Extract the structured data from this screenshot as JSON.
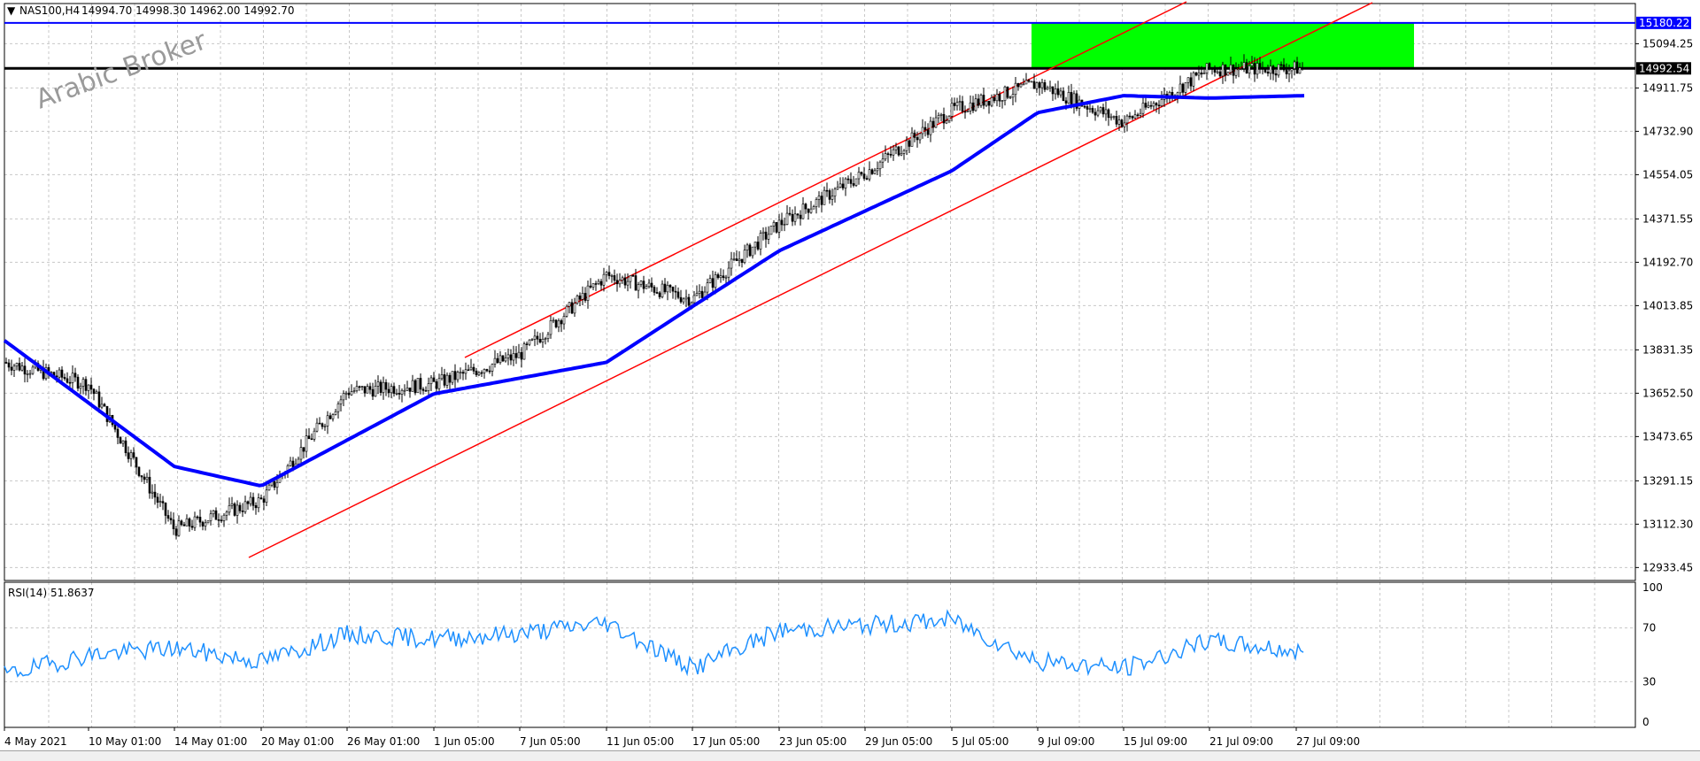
{
  "header": {
    "symbol_label": "NAS100,H4",
    "ohlc": "14994.70 14998.30 14962.00 14992.70"
  },
  "watermark": "Arabic Broker",
  "price_axis": {
    "ticks": [
      "15094.25",
      "14911.75",
      "14732.90",
      "14554.05",
      "14371.55",
      "14192.70",
      "14013.85",
      "13831.35",
      "13652.50",
      "13473.65",
      "13291.15",
      "13112.30",
      "12933.45"
    ],
    "resistance_label": "15180.22",
    "current_label": "14992.54"
  },
  "time_axis": {
    "ticks": [
      "4 May 2021",
      "10 May 01:00",
      "14 May 01:00",
      "20 May 01:00",
      "26 May 01:00",
      "1 Jun 05:00",
      "7 Jun 05:00",
      "11 Jun 05:00",
      "17 Jun 05:00",
      "23 Jun 05:00",
      "29 Jun 05:00",
      "5 Jul 05:00",
      "9 Jul 09:00",
      "15 Jul 09:00",
      "21 Jul 09:00",
      "27 Jul 09:00"
    ]
  },
  "rsi": {
    "label": "RSI(14) 51.8637",
    "ticks": [
      "100",
      "70",
      "30",
      "0"
    ]
  },
  "colors": {
    "background": "#ffffff",
    "grid": "#c8c8c8",
    "candle": "#000000",
    "moving_average": "#0000ff",
    "channel": "#ff0000",
    "zone": "#00ff00",
    "resistance": "#0000ff",
    "rsi_line": "#1e90ff"
  },
  "chart_data": {
    "type": "candlestick",
    "symbol": "NAS100",
    "timeframe": "H4",
    "price_range": [
      12880,
      15260
    ],
    "price_keypoints": [
      [
        "4 May 2021",
        13780
      ],
      [
        "10 May 01:00",
        13690
      ],
      [
        "14 May 01:00",
        13090
      ],
      [
        "20 May 01:00",
        13210
      ],
      [
        "26 May 01:00",
        13660
      ],
      [
        "1 Jun 05:00",
        13690
      ],
      [
        "7 Jun 05:00",
        13810
      ],
      [
        "11 Jun 05:00",
        14140
      ],
      [
        "17 Jun 05:00",
        14040
      ],
      [
        "23 Jun 05:00",
        14350
      ],
      [
        "29 Jun 05:00",
        14560
      ],
      [
        "5 Jul 05:00",
        14820
      ],
      [
        "9 Jul 09:00",
        14930
      ],
      [
        "15 Jul 09:00",
        14770
      ],
      [
        "21 Jul 09:00",
        14990
      ],
      [
        "27 Jul 09:00",
        14992.7
      ]
    ],
    "moving_average_keypoints": [
      [
        "4 May 2021",
        13870
      ],
      [
        "14 May 01:00",
        13350
      ],
      [
        "20 May 01:00",
        13270
      ],
      [
        "1 Jun 05:00",
        13650
      ],
      [
        "11 Jun 05:00",
        13780
      ],
      [
        "17 Jun 05:00",
        14010
      ],
      [
        "23 Jun 05:00",
        14240
      ],
      [
        "5 Jul 05:00",
        14570
      ],
      [
        "9 Jul 09:00",
        14810
      ],
      [
        "15 Jul 09:00",
        14880
      ],
      [
        "21 Jul 09:00",
        14870
      ],
      [
        "27 Jul 09:00",
        14880
      ]
    ],
    "zone": {
      "from_time": "9 Jul 09:00",
      "to_time": "27 Jul 09:00+",
      "price_top": 15180.22,
      "price_bottom": 14992.54
    },
    "horizontal_lines": [
      15180.22,
      14992.54
    ],
    "rsi_range": [
      0,
      100
    ],
    "rsi_levels": [
      70,
      30
    ],
    "rsi_last": 51.8637,
    "rsi_keypoints": [
      [
        "4 May 2021",
        35
      ],
      [
        "10 May 01:00",
        50
      ],
      [
        "14 May 01:00",
        55
      ],
      [
        "20 May 01:00",
        45
      ],
      [
        "26 May 01:00",
        65
      ],
      [
        "1 Jun 05:00",
        62
      ],
      [
        "7 Jun 05:00",
        66
      ],
      [
        "11 Jun 05:00",
        74
      ],
      [
        "17 Jun 05:00",
        40
      ],
      [
        "23 Jun 05:00",
        68
      ],
      [
        "29 Jun 05:00",
        72
      ],
      [
        "5 Jul 05:00",
        76
      ],
      [
        "9 Jul 09:00",
        45
      ],
      [
        "15 Jul 09:00",
        40
      ],
      [
        "21 Jul 09:00",
        60
      ],
      [
        "27 Jul 09:00",
        52
      ]
    ]
  }
}
